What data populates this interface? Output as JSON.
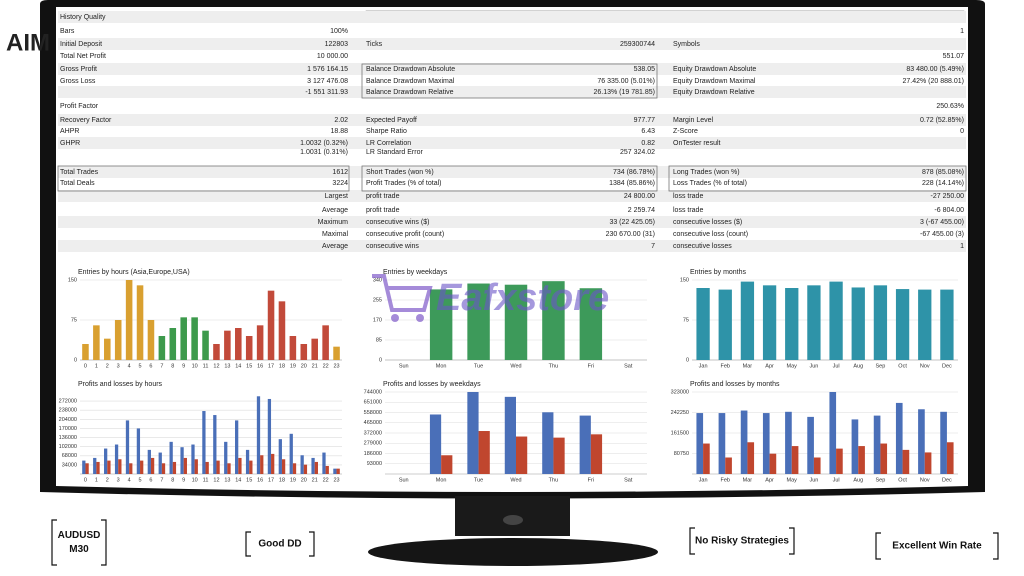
{
  "logo": "AIM",
  "watermark": "Eafxstore",
  "report": {
    "rows": [
      {
        "label": "History Quality"
      },
      {
        "label": "Bars",
        "value": "100%",
        "value3": "1"
      },
      {
        "label": "Initial Deposit",
        "value": "122803",
        "label2": "Ticks",
        "value2": "259300744",
        "label3": "Symbols"
      },
      {
        "label": "Total Net Profit",
        "value": "10 000.00",
        "value3": "551.07"
      },
      {
        "label": "Gross Profit",
        "value": "1 576 164.15",
        "label2": "Balance Drawdown Absolute",
        "value2": "538.05",
        "label3": "Equity Drawdown Absolute",
        "value3": "83 480.00 (5.49%)"
      },
      {
        "label": "Gross Loss",
        "value": "3 127 476.08",
        "label2": "Balance Drawdown Maximal",
        "value2": "76 335.00 (5.01%)",
        "label3": "Equity Drawdown Maximal",
        "value3": "27.42% (20 888.01)"
      },
      {
        "value": "-1 551 311.93",
        "label2": "Balance Drawdown Relative",
        "value2": "26.13% (19 781.85)",
        "label3": "Equity Drawdown Relative"
      },
      {
        "label": "Profit Factor",
        "value3": "250.63%"
      },
      {
        "label": "Recovery Factor",
        "value": "2.02",
        "label2": "Expected Payoff",
        "value2": "977.77",
        "label3": "Margin Level",
        "value3": "0.72 (52.85%)"
      },
      {
        "label": "AHPR",
        "value": "18.88",
        "label2": "Sharpe Ratio",
        "value2": "6.43",
        "label3": "Z-Score",
        "value3": "0"
      },
      {
        "label": "GHPR",
        "value": "1.0032 (0.32%)",
        "label2": "LR Correlation",
        "value2": "0.82",
        "label3": "OnTester result"
      },
      {
        "value": "1.0031 (0.31%)",
        "label2": "LR Standard Error",
        "value2": "257 324.02"
      },
      {
        "label": "Total Trades",
        "value": "1612",
        "label2": "Short Trades (won %)",
        "value2": "734 (86.78%)",
        "label3": "Long Trades (won %)",
        "value3": "878 (85.08%)"
      },
      {
        "label": "Total Deals",
        "value": "3224",
        "label2": "Profit Trades (% of total)",
        "value2": "1384 (85.86%)",
        "label3": "Loss Trades (% of total)",
        "value3": "228 (14.14%)"
      },
      {
        "value": "Largest",
        "label2": "profit trade",
        "value2": "24 800.00",
        "label3": "loss trade",
        "value3": "-27 250.00"
      },
      {
        "value": "Average",
        "label2": "profit trade",
        "value2": "2 259.74",
        "label3": "loss trade",
        "value3": "-6 804.00"
      },
      {
        "value": "Maximum",
        "label2": "consecutive wins ($)",
        "value2": "33 (22 425.05)",
        "label3": "consecutive losses ($)",
        "value3": "3 (-67 455.00)"
      },
      {
        "value": "Maximal",
        "label2": "consecutive profit (count)",
        "value2": "230 670.00 (31)",
        "label3": "consecutive loss (count)",
        "value3": "-67 455.00 (3)"
      },
      {
        "value": "Average",
        "label2": "consecutive wins",
        "value2": "7",
        "label3": "consecutive losses",
        "value3": "1"
      }
    ]
  },
  "chart_data": [
    {
      "type": "bar",
      "title": "Entries by hours (Asia,Europe,USA)",
      "categories": [
        "0",
        "1",
        "2",
        "3",
        "4",
        "5",
        "6",
        "7",
        "8",
        "9",
        "10",
        "11",
        "12",
        "13",
        "14",
        "15",
        "16",
        "17",
        "18",
        "19",
        "20",
        "21",
        "22",
        "23"
      ],
      "series": [
        {
          "colors": [
            "#d9a030",
            "#d9a030",
            "#d9a030",
            "#d9a030",
            "#d9a030",
            "#d9a030",
            "#d9a030",
            "#3d9a4c",
            "#3d9a4c",
            "#3d9a4c",
            "#3d9a4c",
            "#3d9a4c",
            "#c24a3a",
            "#c24a3a",
            "#c24a3a",
            "#c24a3a",
            "#c24a3a",
            "#c24a3a",
            "#c24a3a",
            "#c24a3a",
            "#c24a3a",
            "#c24a3a",
            "#c24a3a",
            "#d9a030"
          ],
          "values": [
            30,
            65,
            40,
            75,
            150,
            140,
            75,
            45,
            60,
            80,
            80,
            55,
            30,
            55,
            60,
            45,
            65,
            130,
            110,
            45,
            30,
            40,
            65,
            25
          ]
        }
      ],
      "ylim": [
        0,
        150
      ],
      "yticks": [
        0,
        75,
        150
      ]
    },
    {
      "type": "bar",
      "title": "Entries by weekdays",
      "categories": [
        "Sun",
        "Mon",
        "Tue",
        "Wed",
        "Thu",
        "Fri",
        "Sat"
      ],
      "series": [
        {
          "color": "#3d9a5a",
          "values": [
            0,
            300,
            325,
            320,
            335,
            305,
            0
          ]
        }
      ],
      "ylim": [
        0,
        340
      ],
      "yticks": [
        0,
        85,
        170,
        255,
        340
      ]
    },
    {
      "type": "bar",
      "title": "Entries by months",
      "categories": [
        "Jan",
        "Feb",
        "Mar",
        "Apr",
        "May",
        "Jun",
        "Jul",
        "Aug",
        "Sep",
        "Oct",
        "Nov",
        "Dec"
      ],
      "series": [
        {
          "color": "#2e93a8",
          "values": [
            135,
            132,
            147,
            140,
            135,
            140,
            147,
            136,
            140,
            133,
            132,
            132
          ]
        }
      ],
      "ylim": [
        0,
        150
      ],
      "yticks": [
        0,
        75,
        150
      ]
    },
    {
      "type": "bar",
      "title": "Profits and losses by hours",
      "categories": [
        "0",
        "1",
        "2",
        "3",
        "4",
        "5",
        "6",
        "7",
        "8",
        "9",
        "10",
        "11",
        "12",
        "13",
        "14",
        "15",
        "16",
        "17",
        "18",
        "19",
        "20",
        "21",
        "22",
        "23"
      ],
      "series": [
        {
          "color": "#4a6fb8",
          "values": [
            50000,
            60000,
            95000,
            110000,
            200000,
            170000,
            90000,
            80000,
            120000,
            100000,
            110000,
            235000,
            220000,
            120000,
            200000,
            90000,
            290000,
            280000,
            130000,
            150000,
            70000,
            60000,
            80000,
            20000
          ]
        },
        {
          "color": "#c0462e",
          "values": [
            40000,
            45000,
            50000,
            55000,
            40000,
            50000,
            60000,
            40000,
            45000,
            60000,
            55000,
            45000,
            50000,
            40000,
            60000,
            50000,
            70000,
            75000,
            55000,
            40000,
            35000,
            45000,
            30000,
            20000
          ]
        }
      ],
      "ylim": [
        0,
        306000
      ],
      "yticks": [
        34000,
        68000,
        102000,
        136000,
        170000,
        204000,
        238000,
        272000
      ]
    },
    {
      "type": "bar",
      "title": "Profits and losses by weekdays",
      "categories": [
        "Sun",
        "Mon",
        "Tue",
        "Wed",
        "Thu",
        "Fri",
        "Sat"
      ],
      "series": [
        {
          "color": "#4a6fb8",
          "values": [
            0,
            540000,
            744000,
            700000,
            560000,
            530000,
            0
          ]
        },
        {
          "color": "#c0462e",
          "values": [
            0,
            170000,
            390000,
            340000,
            330000,
            360000,
            0
          ]
        }
      ],
      "ylim": [
        0,
        744000
      ],
      "yticks": [
        93000,
        186000,
        279000,
        372000,
        465000,
        558000,
        651000,
        744000
      ]
    },
    {
      "type": "bar",
      "title": "Profits and losses by months",
      "categories": [
        "Jan",
        "Feb",
        "Mar",
        "Apr",
        "May",
        "Jun",
        "Jul",
        "Aug",
        "Sep",
        "Oct",
        "Nov",
        "Dec"
      ],
      "series": [
        {
          "color": "#4a6fb8",
          "values": [
            240000,
            240000,
            250000,
            240000,
            245000,
            225000,
            323000,
            215000,
            230000,
            280000,
            255000,
            245000
          ]
        },
        {
          "color": "#c0462e",
          "values": [
            120000,
            65000,
            125000,
            80000,
            110000,
            65000,
            100000,
            110000,
            120000,
            95000,
            85000,
            125000
          ]
        }
      ],
      "ylim": [
        0,
        323000
      ],
      "yticks": [
        80750,
        161500,
        242250,
        323000
      ]
    }
  ],
  "badges": [
    [
      "AUDUSD",
      "M30"
    ],
    [
      "Good DD"
    ],
    [
      "No Risky Strategies"
    ],
    [
      "Excellent Win Rate"
    ]
  ]
}
